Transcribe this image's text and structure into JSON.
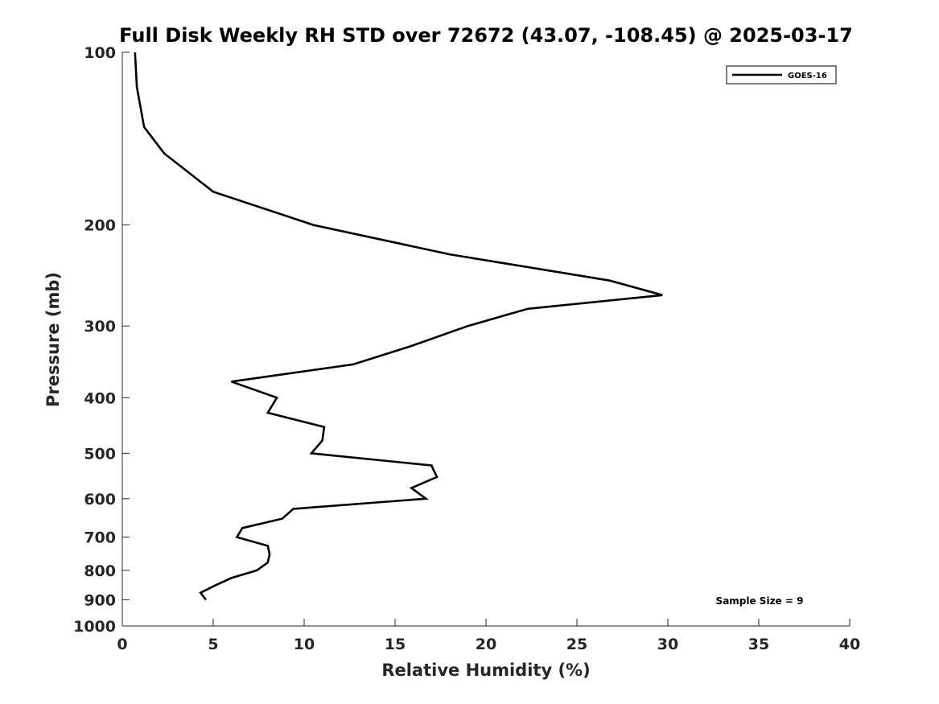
{
  "chart_data": {
    "type": "line",
    "title": "Full Disk Weekly RH STD over 72672 (43.07, -108.45) @ 2025-03-17",
    "xlabel": "Relative Humidity (%)",
    "ylabel": "Pressure (mb)",
    "xlim": [
      0,
      40
    ],
    "ylim": [
      100,
      1000
    ],
    "y_scale": "log",
    "y_reversed": true,
    "x_ticks": [
      "0",
      "5",
      "10",
      "15",
      "20",
      "25",
      "30",
      "35",
      "40"
    ],
    "y_ticks": [
      "100",
      "200",
      "300",
      "400",
      "500",
      "600",
      "700",
      "800",
      "900",
      "1000"
    ],
    "grid": false,
    "legend_position": "top-right",
    "annotation": "Sample Size = 9",
    "series": [
      {
        "name": "GOES-16",
        "color": "#000000",
        "points": [
          [
            0.7,
            100
          ],
          [
            0.8,
            115
          ],
          [
            1.2,
            135
          ],
          [
            2.3,
            150
          ],
          [
            5.0,
            175
          ],
          [
            10.5,
            200
          ],
          [
            18.0,
            225
          ],
          [
            26.8,
            250
          ],
          [
            29.7,
            265
          ],
          [
            22.3,
            280
          ],
          [
            19.0,
            300
          ],
          [
            15.9,
            325
          ],
          [
            12.7,
            350
          ],
          [
            6.0,
            375
          ],
          [
            8.5,
            400
          ],
          [
            8.0,
            425
          ],
          [
            11.1,
            450
          ],
          [
            11.0,
            475
          ],
          [
            10.4,
            500
          ],
          [
            17.0,
            525
          ],
          [
            17.3,
            550
          ],
          [
            15.9,
            575
          ],
          [
            16.7,
            600
          ],
          [
            9.4,
            625
          ],
          [
            8.8,
            650
          ],
          [
            6.6,
            675
          ],
          [
            6.3,
            700
          ],
          [
            8.0,
            725
          ],
          [
            8.1,
            750
          ],
          [
            8.0,
            775
          ],
          [
            7.4,
            800
          ],
          [
            6.0,
            825
          ],
          [
            5.1,
            850
          ],
          [
            4.3,
            875
          ],
          [
            4.6,
            900
          ]
        ]
      }
    ]
  }
}
